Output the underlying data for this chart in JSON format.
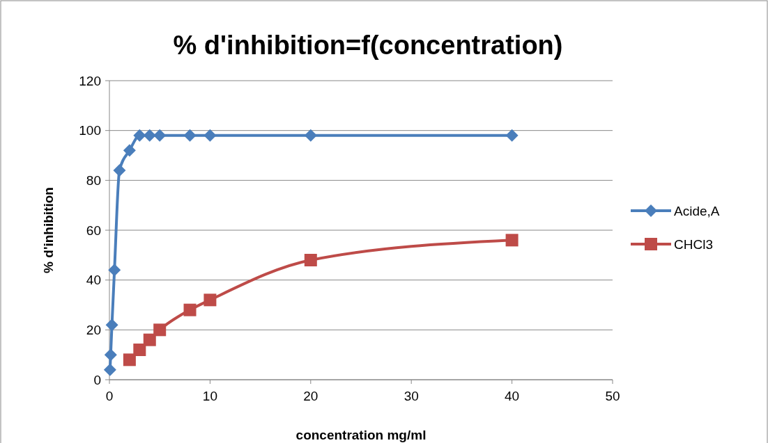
{
  "chart_data": {
    "type": "line",
    "title": "% d'inhibition=f(concentration)",
    "xlabel": "concentration mg/ml",
    "ylabel": "% d'inhibition",
    "xlim": [
      0,
      50
    ],
    "xticks": [
      0,
      10,
      20,
      30,
      40,
      50
    ],
    "ylim": [
      0,
      120
    ],
    "yticks": [
      0,
      20,
      40,
      60,
      80,
      100,
      120
    ],
    "grid": "y",
    "legend": "right",
    "series": [
      {
        "name": "Acide,A",
        "color": "#4a7ebb",
        "marker": "diamond",
        "x": [
          0.06,
          0.125,
          0.25,
          0.5,
          1,
          2,
          3,
          4,
          5,
          8,
          10,
          20,
          40
        ],
        "values": [
          4,
          10,
          22,
          44,
          84,
          92,
          98,
          98,
          98,
          98,
          98,
          98,
          98
        ]
      },
      {
        "name": "CHCl3",
        "color": "#be4b48",
        "marker": "square",
        "x": [
          2,
          3,
          4,
          5,
          8,
          10,
          20,
          40
        ],
        "values": [
          8,
          12,
          16,
          20,
          28,
          32,
          48,
          56
        ]
      }
    ]
  }
}
